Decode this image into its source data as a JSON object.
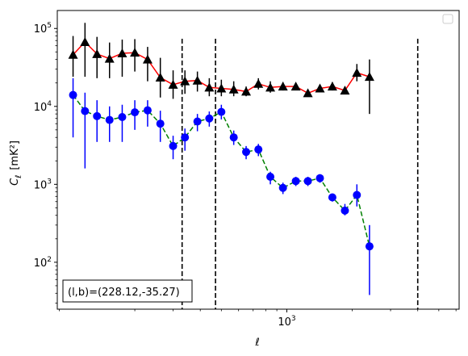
{
  "chart_data": {
    "type": "line",
    "xscale": "log",
    "yscale": "log",
    "xlim": [
      88,
      6200
    ],
    "ylim": [
      25,
      170000
    ],
    "xlabel": "ℓ",
    "ylabel_main": "C",
    "ylabel_sub": "ℓ",
    "ylabel_unit": "[mK²]",
    "x_ticks": [
      {
        "value": 1000,
        "base": "10",
        "exp": "3"
      }
    ],
    "y_ticks": [
      {
        "value": 100,
        "base": "10",
        "exp": "2"
      },
      {
        "value": 1000,
        "base": "10",
        "exp": "3"
      },
      {
        "value": 10000,
        "base": "10",
        "exp": "4"
      },
      {
        "value": 100000,
        "base": "10",
        "exp": "5"
      }
    ],
    "vlines": [
      330,
      470,
      4000
    ],
    "legend": {
      "location": "upper right",
      "entries": []
    },
    "annotation": {
      "text": "(l,b)=(228.12,-35.27)",
      "location": "lower left"
    },
    "series": [
      {
        "marker": "triangle",
        "color": "#000000",
        "line_color": "#ff0000",
        "line_style": "solid",
        "points": [
          {
            "x": 104,
            "y": 46000,
            "lo": 24000,
            "hi": 80000
          },
          {
            "x": 118,
            "y": 67000,
            "lo": 24000,
            "hi": 118000
          },
          {
            "x": 134,
            "y": 47000,
            "lo": 23000,
            "hi": 78000
          },
          {
            "x": 153,
            "y": 41000,
            "lo": 23000,
            "hi": 66000
          },
          {
            "x": 175,
            "y": 48000,
            "lo": 24000,
            "hi": 72000
          },
          {
            "x": 200,
            "y": 49000,
            "lo": 28000,
            "hi": 73000
          },
          {
            "x": 229,
            "y": 40000,
            "lo": 21000,
            "hi": 58000
          },
          {
            "x": 262,
            "y": 23500,
            "lo": 13000,
            "hi": 42000
          },
          {
            "x": 300,
            "y": 19000,
            "lo": 12500,
            "hi": 29000
          },
          {
            "x": 340,
            "y": 21000,
            "lo": 14500,
            "hi": 29000
          },
          {
            "x": 388,
            "y": 21500,
            "lo": 15500,
            "hi": 28000
          },
          {
            "x": 440,
            "y": 17500,
            "lo": 13500,
            "hi": 23000
          },
          {
            "x": 500,
            "y": 17000,
            "lo": 13500,
            "hi": 22000
          },
          {
            "x": 570,
            "y": 16500,
            "lo": 13500,
            "hi": 21000
          },
          {
            "x": 650,
            "y": 15500,
            "lo": 13500,
            "hi": 18000
          },
          {
            "x": 740,
            "y": 19500,
            "lo": 16500,
            "hi": 23000
          },
          {
            "x": 840,
            "y": 17500,
            "lo": 15000,
            "hi": 21000
          },
          {
            "x": 960,
            "y": 18000,
            "lo": 16000,
            "hi": 20500
          },
          {
            "x": 1100,
            "y": 18000,
            "lo": 16500,
            "hi": 20000
          },
          {
            "x": 1250,
            "y": 14800,
            "lo": 13500,
            "hi": 16000
          },
          {
            "x": 1420,
            "y": 17000,
            "lo": 15500,
            "hi": 19000
          },
          {
            "x": 1620,
            "y": 18000,
            "lo": 16000,
            "hi": 20500
          },
          {
            "x": 1850,
            "y": 16000,
            "lo": 14500,
            "hi": 18000
          },
          {
            "x": 2100,
            "y": 27000,
            "lo": 21000,
            "hi": 35000
          },
          {
            "x": 2400,
            "y": 24000,
            "lo": 8000,
            "hi": 40000
          }
        ]
      },
      {
        "marker": "circle",
        "color": "#0000ff",
        "line_color": "#008000",
        "line_style": "dashed",
        "points": [
          {
            "x": 104,
            "y": 14000,
            "lo": 4000,
            "hi": 23000
          },
          {
            "x": 118,
            "y": 8700,
            "lo": 1600,
            "hi": 15000
          },
          {
            "x": 134,
            "y": 7500,
            "lo": 3500,
            "hi": 12000
          },
          {
            "x": 153,
            "y": 6700,
            "lo": 3500,
            "hi": 10000
          },
          {
            "x": 175,
            "y": 7300,
            "lo": 3500,
            "hi": 10500
          },
          {
            "x": 200,
            "y": 8400,
            "lo": 5000,
            "hi": 12000
          },
          {
            "x": 229,
            "y": 8900,
            "lo": 5500,
            "hi": 12000
          },
          {
            "x": 262,
            "y": 6000,
            "lo": 3500,
            "hi": 8800
          },
          {
            "x": 300,
            "y": 3100,
            "lo": 2100,
            "hi": 4200
          },
          {
            "x": 340,
            "y": 4000,
            "lo": 2700,
            "hi": 5200
          },
          {
            "x": 388,
            "y": 6400,
            "lo": 4800,
            "hi": 8000
          },
          {
            "x": 440,
            "y": 7000,
            "lo": 5500,
            "hi": 8600
          },
          {
            "x": 500,
            "y": 8500,
            "lo": 6800,
            "hi": 10500
          },
          {
            "x": 570,
            "y": 4000,
            "lo": 3200,
            "hi": 4900
          },
          {
            "x": 650,
            "y": 2600,
            "lo": 2100,
            "hi": 3100
          },
          {
            "x": 740,
            "y": 2800,
            "lo": 2300,
            "hi": 3300
          },
          {
            "x": 840,
            "y": 1250,
            "lo": 1000,
            "hi": 1450
          },
          {
            "x": 960,
            "y": 900,
            "lo": 750,
            "hi": 1050
          },
          {
            "x": 1100,
            "y": 1100,
            "lo": 950,
            "hi": 1250
          },
          {
            "x": 1250,
            "y": 1100,
            "lo": 950,
            "hi": 1250
          },
          {
            "x": 1420,
            "y": 1200,
            "lo": 1050,
            "hi": 1350
          },
          {
            "x": 1620,
            "y": 680,
            "lo": 600,
            "hi": 760
          },
          {
            "x": 1850,
            "y": 460,
            "lo": 400,
            "hi": 560
          },
          {
            "x": 2100,
            "y": 730,
            "lo": 520,
            "hi": 1000
          },
          {
            "x": 2400,
            "y": 160,
            "lo": 38,
            "hi": 300
          }
        ]
      }
    ]
  }
}
